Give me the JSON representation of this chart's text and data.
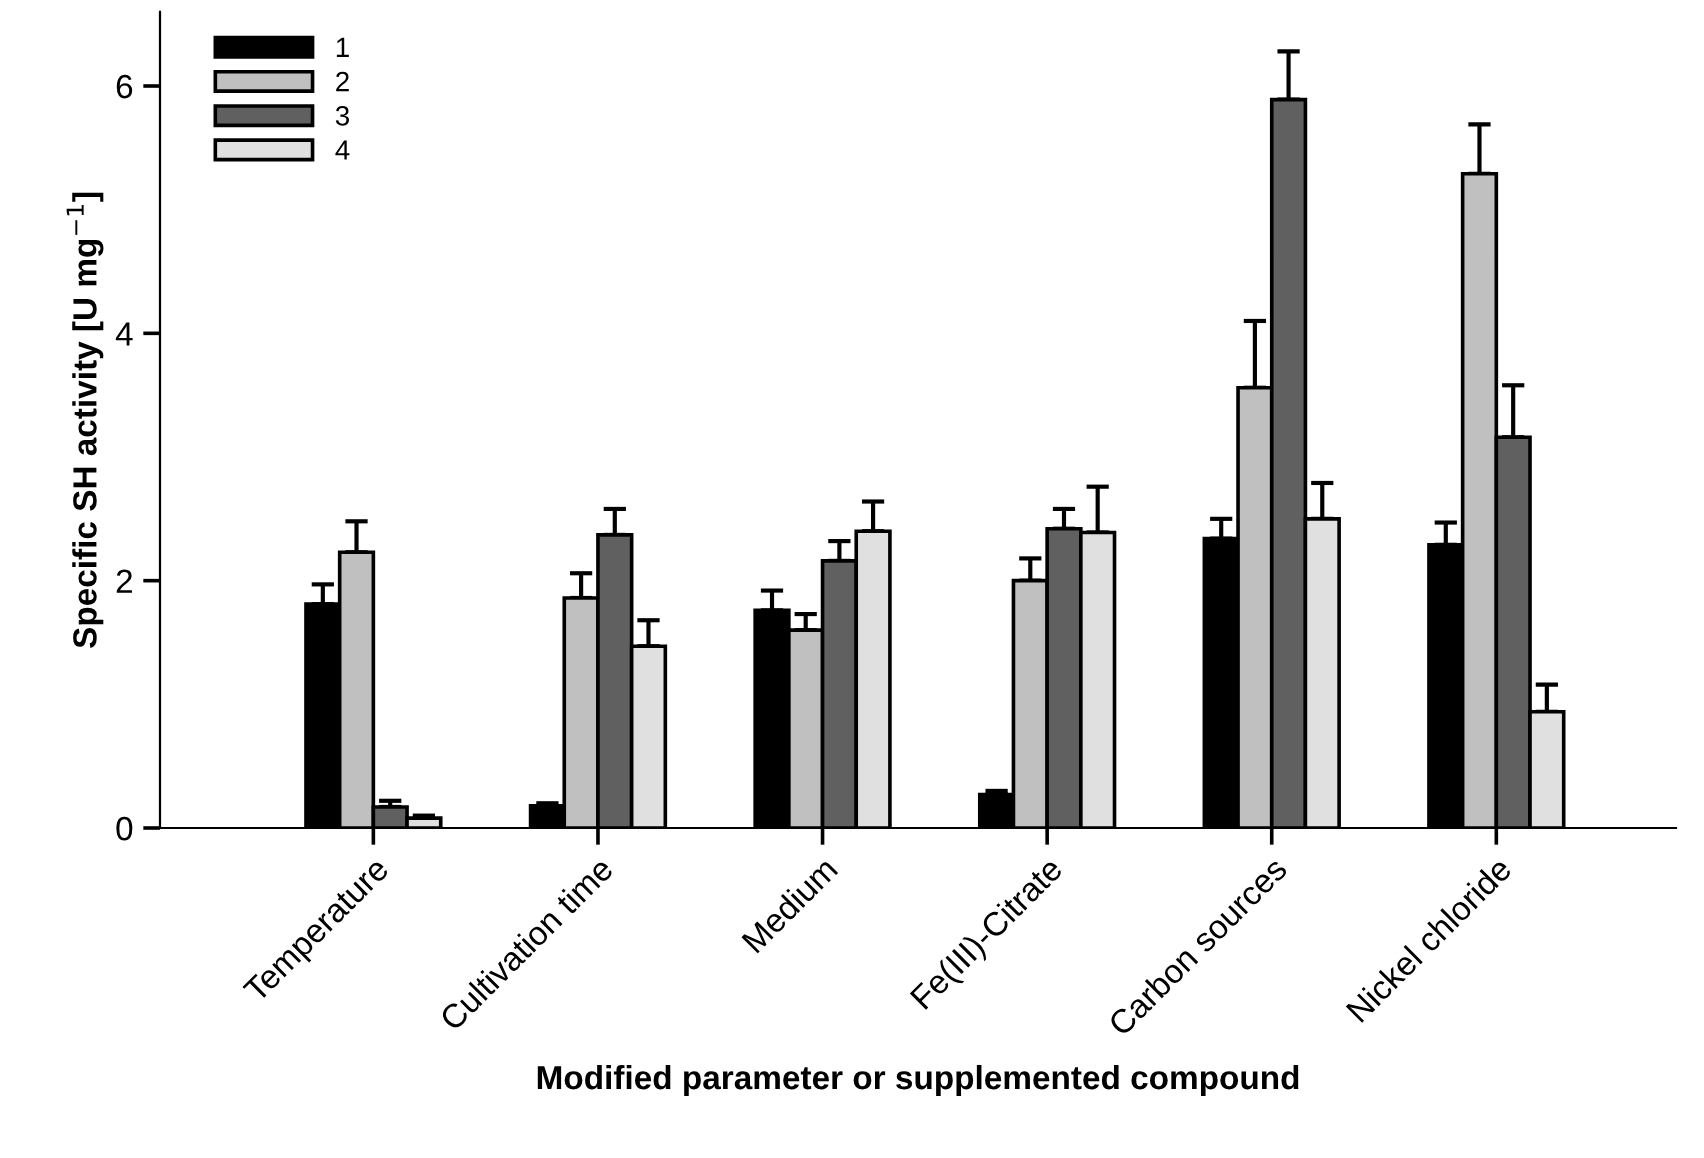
{
  "chart_data": {
    "type": "bar",
    "xlabel": "Modified parameter or supplemented compound",
    "ylabel": "Specific SH activity [U mg$^{−1}$]",
    "categories": [
      "Temperature",
      "Cultivation time",
      "Medium",
      "Fe(III)-Citrate",
      "Carbon sources",
      "Nickel chloride"
    ],
    "series": [
      {
        "name": "1",
        "color": "#000000",
        "values": [
          1.81,
          0.18,
          1.76,
          0.27,
          2.34,
          2.29
        ],
        "errors": [
          0.16,
          0.02,
          0.16,
          0.03,
          0.16,
          0.18
        ]
      },
      {
        "name": "2",
        "color": "#c0c0c0",
        "values": [
          2.23,
          1.86,
          1.6,
          2.0,
          3.56,
          5.29
        ],
        "errors": [
          0.25,
          0.2,
          0.13,
          0.18,
          0.54,
          0.4
        ]
      },
      {
        "name": "3",
        "color": "#606060",
        "values": [
          0.17,
          2.37,
          2.16,
          2.42,
          5.89,
          3.16
        ],
        "errors": [
          0.05,
          0.21,
          0.16,
          0.16,
          0.39,
          0.42
        ]
      },
      {
        "name": "4",
        "color": "#e0e0e0",
        "values": [
          0.08,
          1.47,
          2.4,
          2.39,
          2.5,
          0.94
        ],
        "errors": [
          0.02,
          0.21,
          0.24,
          0.37,
          0.29,
          0.22
        ]
      }
    ],
    "ylim": [
      0,
      6.6
    ],
    "yticks": [
      0,
      2,
      4,
      6
    ],
    "grid": false,
    "legend": "top left"
  }
}
